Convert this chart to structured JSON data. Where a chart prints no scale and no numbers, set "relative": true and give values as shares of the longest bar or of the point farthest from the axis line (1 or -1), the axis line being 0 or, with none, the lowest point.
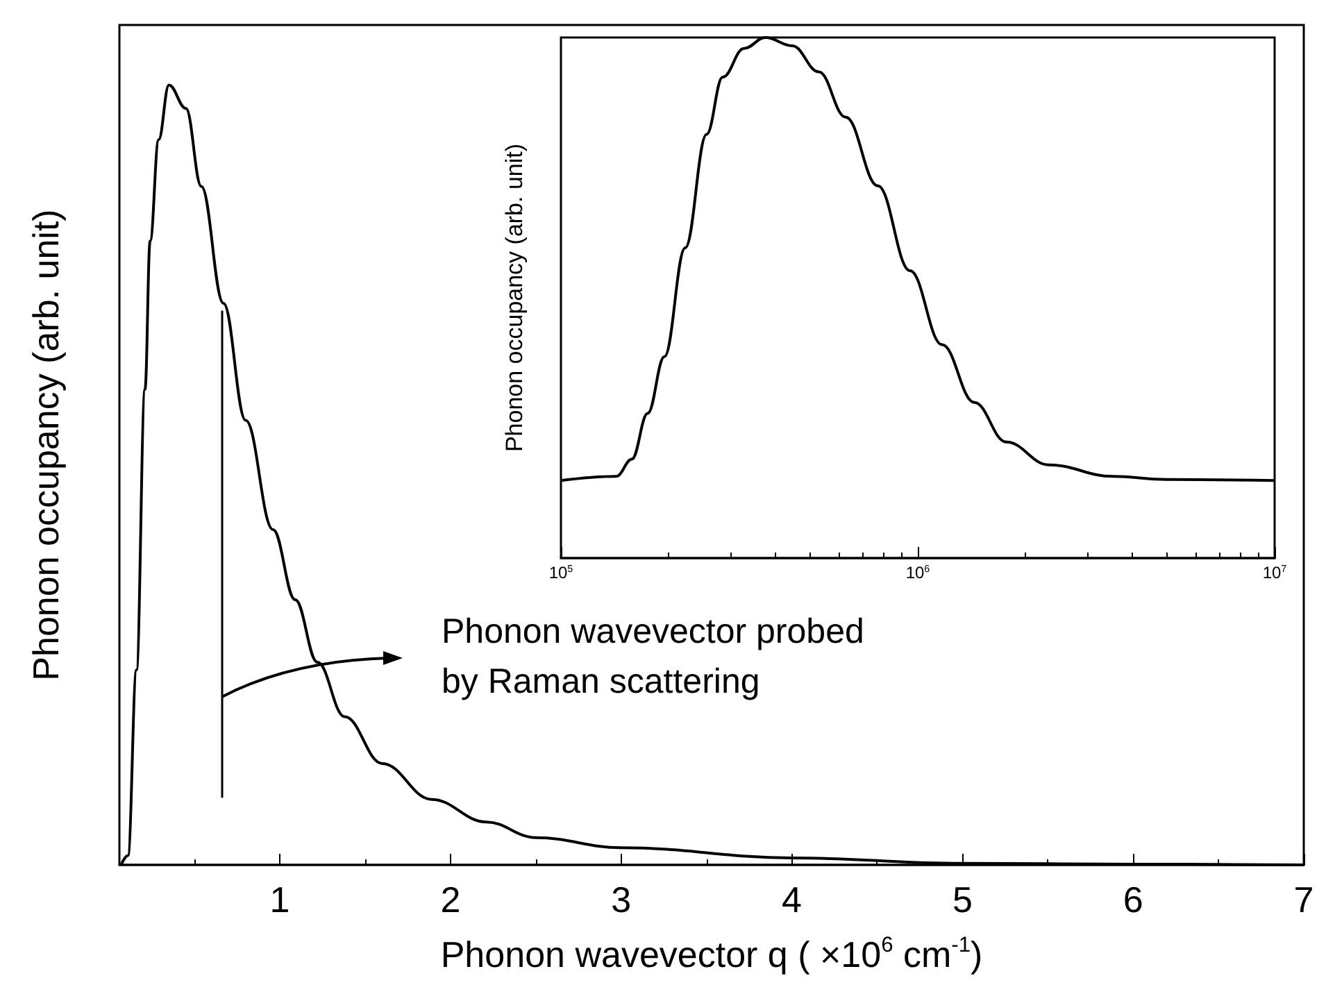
{
  "chart_data": [
    {
      "type": "line",
      "relative": true,
      "xlabel": "Phonon wavevector q ( ×10$^{6}$ cm$^{-1}$)",
      "ylabel": "Phonon occupancy (arb. unit)",
      "x": [
        0.07,
        0.11,
        0.16,
        0.21,
        0.24,
        0.29,
        0.35,
        0.45,
        0.54,
        0.67,
        0.8,
        0.96,
        1.09,
        1.22,
        1.38,
        1.6,
        1.89,
        2.21,
        2.5,
        3,
        4,
        5,
        6,
        7
      ],
      "series": [
        {
          "color": "#000000",
          "values": [
            0,
            0.012,
            0.25,
            0.61,
            0.8,
            0.93,
            1,
            0.97,
            0.87,
            0.72,
            0.57,
            0.43,
            0.34,
            0.26,
            0.19,
            0.13,
            0.084,
            0.055,
            0.035,
            0.022,
            0.009,
            0.002,
            0.001,
            0
          ]
        }
      ],
      "xlim": [
        0.06,
        7
      ],
      "xticks": [
        1,
        2,
        3,
        4,
        5,
        6,
        7
      ],
      "tick_labels": "x",
      "grid": false,
      "marker": "none",
      "line_style": "solid",
      "ref_lines": [
        {
          "axis": "x",
          "value": 0.66,
          "label": "Phonon wavevector probed by Raman scattering",
          "color": "#000000"
        }
      ]
    },
    {
      "type": "line",
      "relative": true,
      "ylabel": "Phonon occupancy (arb. unit)",
      "log": "x",
      "x": [
        100000,
        143000,
        158000,
        175000,
        195000,
        223000,
        256000,
        284000,
        326000,
        374000,
        445000,
        528000,
        628000,
        773000,
        951000,
        1170000,
        1440000,
        1770000,
        2330000,
        3520000,
        4970000,
        10000000
      ],
      "series": [
        {
          "color": "#000000",
          "values": [
            0.149,
            0.157,
            0.19,
            0.278,
            0.387,
            0.596,
            0.814,
            0.924,
            0.979,
            1,
            0.984,
            0.934,
            0.847,
            0.715,
            0.552,
            0.41,
            0.299,
            0.223,
            0.179,
            0.157,
            0.151,
            0.149
          ]
        }
      ],
      "xlim": [
        100000,
        10000000
      ],
      "xticks": [
        {
          "value": 100000,
          "label": "10$^{5}$"
        },
        {
          "value": 1000000,
          "label": "10$^{6}$"
        },
        {
          "value": 10000000,
          "label": "10$^{7}$"
        }
      ],
      "tick_labels": "x",
      "grid": false,
      "marker": "none",
      "line_style": "solid"
    }
  ]
}
